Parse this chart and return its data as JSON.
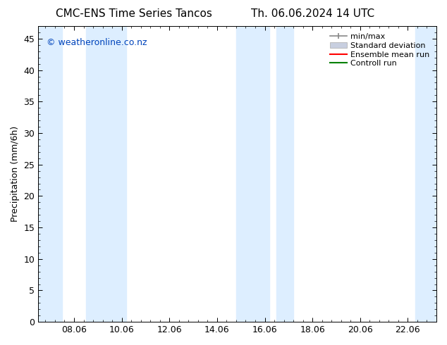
{
  "title_left": "CMC-ENS Time Series Tancos",
  "title_right": "Th. 06.06.2024 14 UTC",
  "ylabel": "Precipitation (mm/6h)",
  "watermark": "© weatheronline.co.nz",
  "xlim_start": 6.5,
  "xlim_end": 23.2,
  "ylim_bottom": 0,
  "ylim_top": 47,
  "yticks": [
    0,
    5,
    10,
    15,
    20,
    25,
    30,
    35,
    40,
    45
  ],
  "xtick_labels": [
    "08.06",
    "10.06",
    "12.06",
    "14.06",
    "16.06",
    "18.06",
    "20.06",
    "22.06"
  ],
  "xtick_positions": [
    8,
    10,
    12,
    14,
    16,
    18,
    20,
    22
  ],
  "shaded_bands": [
    {
      "x_start": 6.5,
      "x_end": 7.5,
      "color": "#ddeeff"
    },
    {
      "x_start": 8.5,
      "x_end": 10.2,
      "color": "#ddeeff"
    },
    {
      "x_start": 14.8,
      "x_end": 16.2,
      "color": "#ddeeff"
    },
    {
      "x_start": 16.5,
      "x_end": 17.2,
      "color": "#ddeeff"
    },
    {
      "x_start": 22.3,
      "x_end": 23.2,
      "color": "#ddeeff"
    }
  ],
  "legend_labels": [
    "min/max",
    "Standard deviation",
    "Ensemble mean run",
    "Controll run"
  ],
  "legend_colors_line": [
    "#999999",
    "#bbbbcc",
    "#ff0000",
    "#008000"
  ],
  "background_color": "#ffffff",
  "plot_bg_color": "#ffffff",
  "title_fontsize": 11,
  "tick_fontsize": 9,
  "ylabel_fontsize": 9,
  "watermark_color": "#0044bb",
  "watermark_fontsize": 9,
  "legend_fontsize": 8
}
